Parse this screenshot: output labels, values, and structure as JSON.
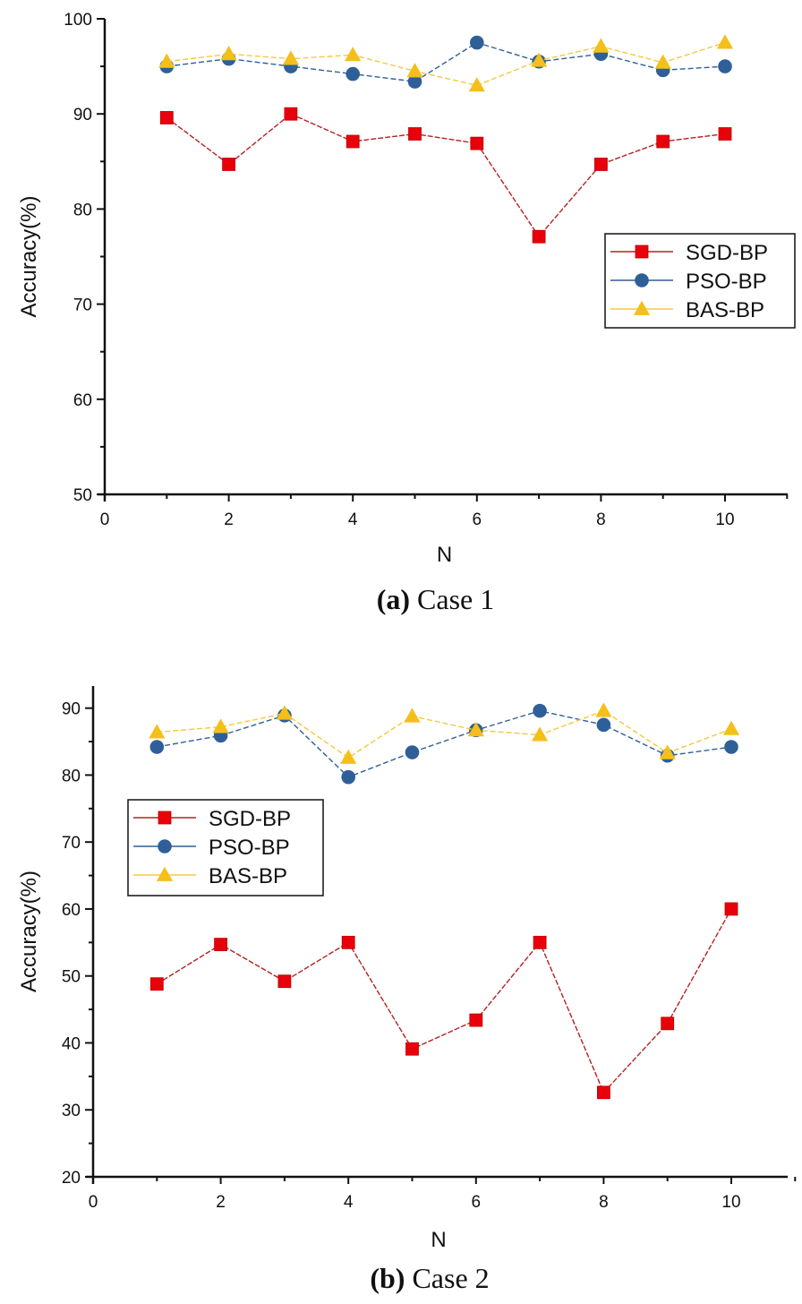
{
  "chart_data": [
    {
      "type": "line",
      "caption_letter": "(a)",
      "caption_text": " Case 1",
      "xlabel": "N",
      "ylabel": "Accuracy(%)",
      "xlim": [
        0,
        11
      ],
      "ylim": [
        50,
        100
      ],
      "xticks": [
        0,
        2,
        4,
        6,
        8,
        10
      ],
      "yticks": [
        50,
        60,
        70,
        80,
        90,
        100
      ],
      "legend_position": "center-right",
      "x": [
        1,
        2,
        3,
        4,
        5,
        6,
        7,
        8,
        9,
        10
      ],
      "series": [
        {
          "name": "SGD-BP",
          "marker": "square",
          "color": "#e8000b",
          "line_color": "#b22222",
          "values": [
            89.6,
            84.7,
            90.0,
            87.1,
            87.9,
            86.9,
            77.1,
            84.7,
            87.1,
            87.9
          ]
        },
        {
          "name": "PSO-BP",
          "marker": "circle",
          "color": "#2f5f98",
          "line_color": "#2f5f98",
          "values": [
            95.0,
            95.8,
            95.0,
            94.2,
            93.4,
            97.5,
            95.5,
            96.3,
            94.6,
            95.0
          ]
        },
        {
          "name": "BAS-BP",
          "marker": "triangle",
          "color": "#f5bf1a",
          "line_color": "#f5c842",
          "values": [
            95.5,
            96.3,
            95.8,
            96.2,
            94.5,
            93.0,
            95.6,
            97.1,
            95.4,
            97.5
          ]
        }
      ]
    },
    {
      "type": "line",
      "caption_letter": "(b)",
      "caption_text": " Case 2",
      "xlabel": "N",
      "ylabel": "Accuracy(%)",
      "xlim": [
        0,
        11
      ],
      "ylim": [
        20,
        93.3
      ],
      "xticks": [
        0,
        2,
        4,
        6,
        8,
        10
      ],
      "yticks": [
        20,
        30,
        40,
        50,
        60,
        70,
        80,
        90
      ],
      "legend_position": "upper-left",
      "x": [
        1,
        2,
        3,
        4,
        5,
        6,
        7,
        8,
        9,
        10
      ],
      "series": [
        {
          "name": "SGD-BP",
          "marker": "square",
          "color": "#e8000b",
          "line_color": "#b22222",
          "values": [
            48.8,
            54.7,
            49.2,
            55.0,
            39.1,
            43.4,
            55.0,
            32.6,
            42.9,
            60.0
          ]
        },
        {
          "name": "PSO-BP",
          "marker": "circle",
          "color": "#2f5f98",
          "line_color": "#2f5f98",
          "values": [
            84.2,
            85.9,
            88.9,
            79.7,
            83.4,
            86.7,
            89.6,
            87.5,
            82.9,
            84.2
          ]
        },
        {
          "name": "BAS-BP",
          "marker": "triangle",
          "color": "#f5bf1a",
          "line_color": "#f5c842",
          "values": [
            86.4,
            87.2,
            89.2,
            82.6,
            88.8,
            86.7,
            86.0,
            89.6,
            83.3,
            86.9
          ]
        }
      ]
    }
  ]
}
